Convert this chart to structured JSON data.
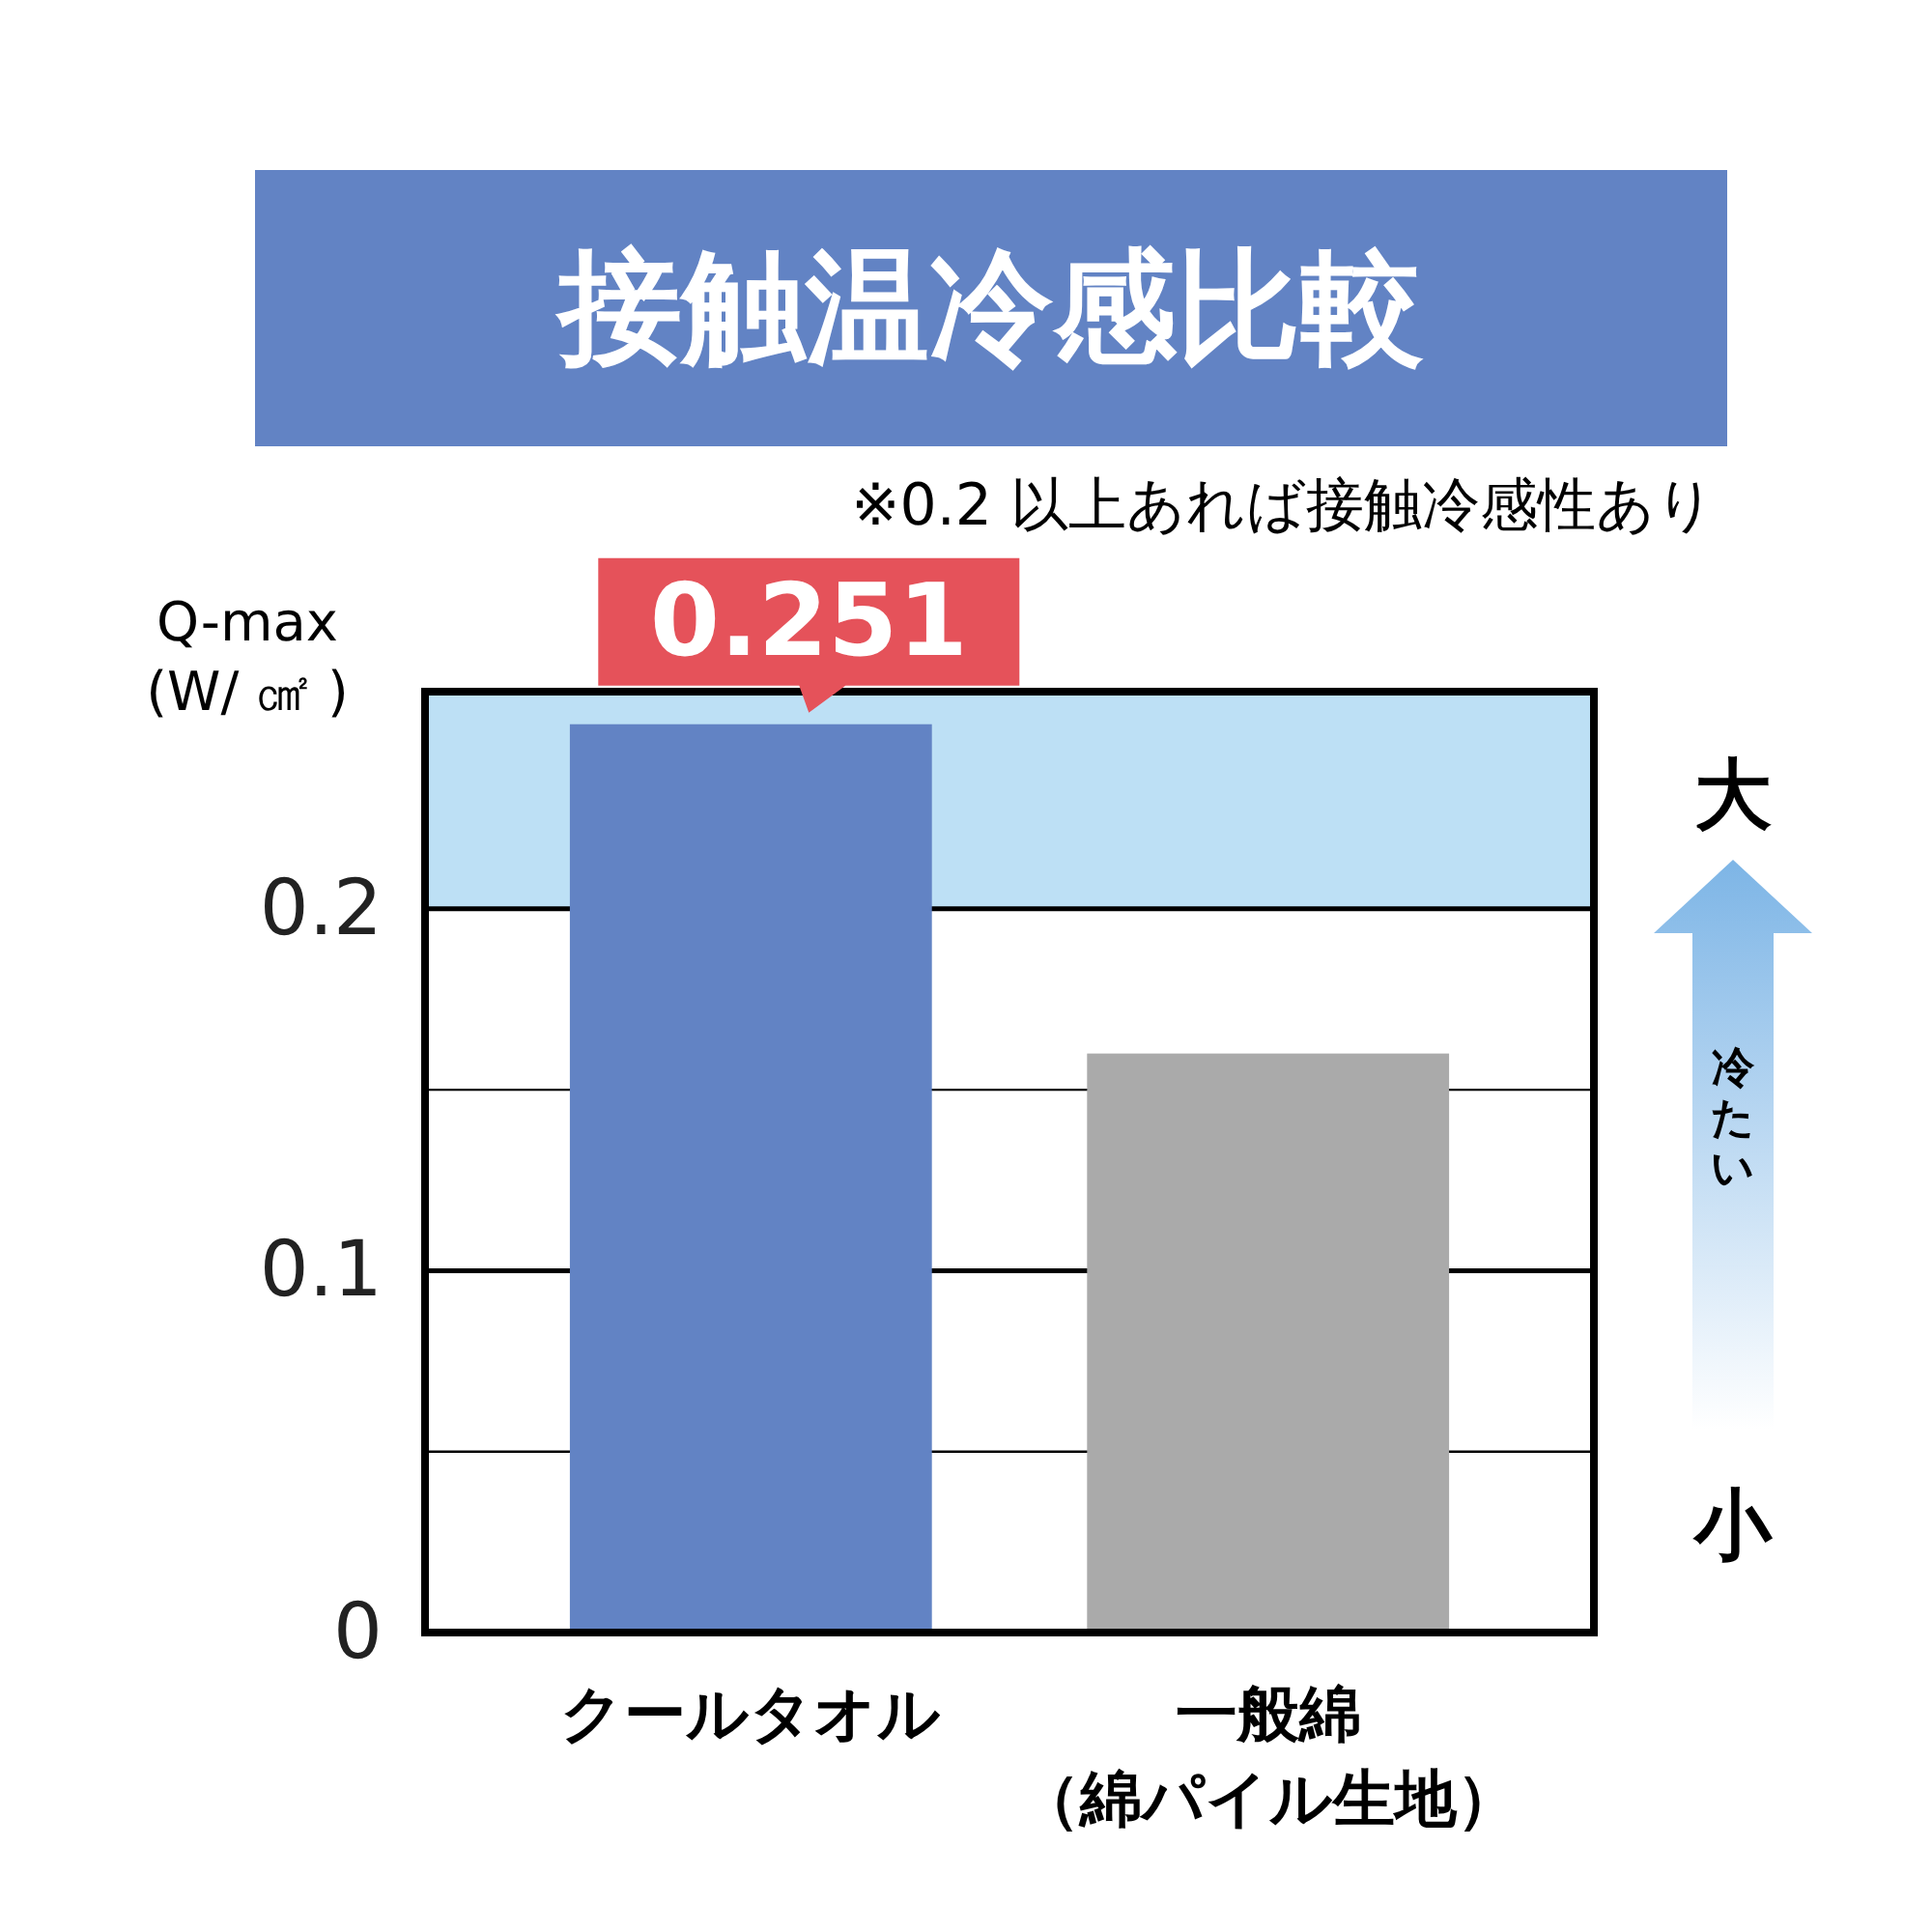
{
  "chart_data": {
    "type": "bar",
    "title": "接触温冷感比較",
    "ylabel": "Q-max\n(W/ ㎠ )",
    "categories": [
      "クールタオル",
      "一般綿（綿パイル生地）"
    ],
    "values": [
      0.251,
      0.16
    ],
    "colors": [
      "#6283c4",
      "#aaaaaa"
    ],
    "value_labels": [
      "0.251",
      null
    ],
    "ylim": [
      0,
      0.26
    ],
    "yticks": [
      0,
      {
        "value": 0.05,
        "label": null
      },
      0.1,
      {
        "value": 0.15,
        "label": null
      },
      0.2
    ],
    "grid": "y",
    "bands": [
      {
        "axis": "y",
        "from": 0.2,
        "to": 0.26,
        "color": "#bde0f5"
      }
    ],
    "annotations": [
      "※0.2 以上あれば接触冷感性あり",
      "大",
      "冷たい",
      "小"
    ]
  }
}
